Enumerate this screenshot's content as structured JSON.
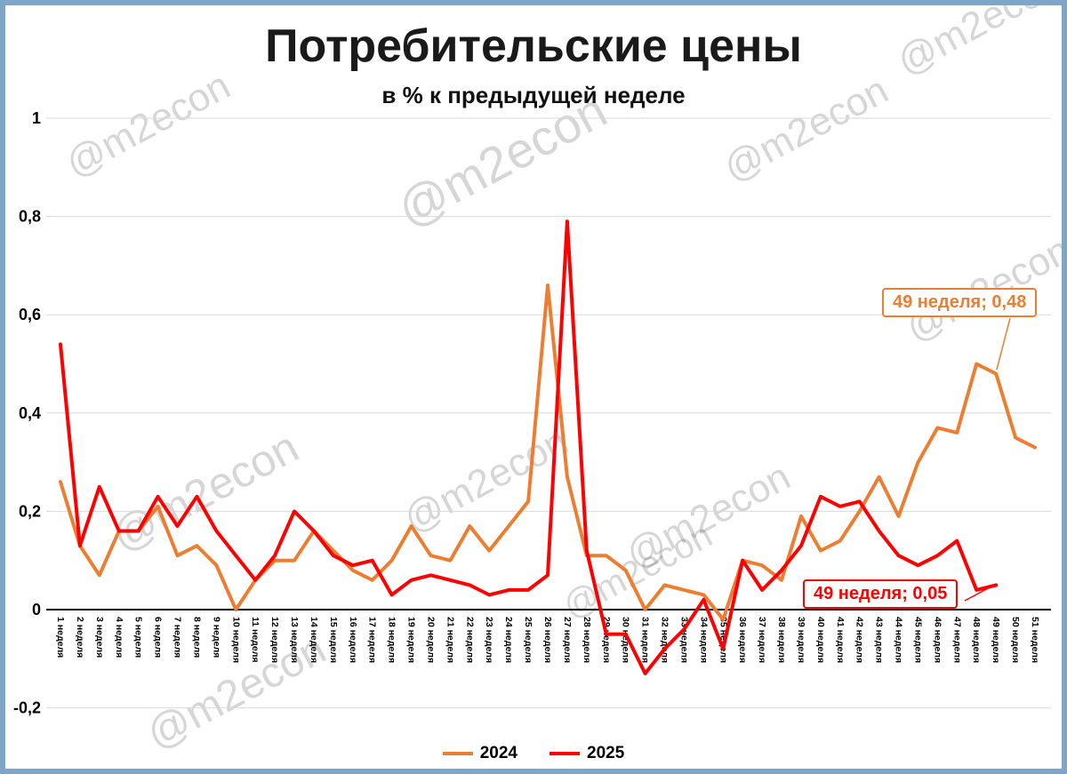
{
  "title": "Потребительские цены",
  "subtitle": "в % к предыдущей неделе",
  "watermark_text": "@m2econ",
  "annotations": [
    {
      "text": "49 неделя; 0,48",
      "color": "#ED7D31",
      "series": "2024"
    },
    {
      "text": "49 неделя; 0,05",
      "color": "#FF0000",
      "series": "2025"
    }
  ],
  "chart_data": {
    "type": "line",
    "title": "Потребительские цены",
    "subtitle": "в % к предыдущей неделе",
    "xlabel": "",
    "ylabel": "",
    "ylim": [
      -0.2,
      1
    ],
    "yticks": [
      -0.2,
      0,
      0.2,
      0.4,
      0.6,
      0.8,
      1
    ],
    "ytick_labels": [
      "-0,2",
      "0",
      "0,2",
      "0,4",
      "0,6",
      "0,8",
      "1"
    ],
    "grid": true,
    "legend_position": "bottom",
    "x_labels": [
      "1 неделя",
      "2 неделя",
      "3 неделя",
      "4 неделя",
      "5 неделя",
      "6 неделя",
      "7 неделя",
      "8 неделя",
      "9 неделя",
      "10 неделя",
      "11 неделя",
      "12 неделя",
      "13 неделя",
      "14 неделя",
      "15 неделя",
      "16 неделя",
      "17 неделя",
      "18 неделя",
      "19 неделя",
      "20 неделя",
      "21 неделя",
      "22 неделя",
      "23 неделя",
      "24 неделя",
      "25 неделя",
      "26 неделя",
      "27 неделя",
      "28 неделя",
      "29 неделя",
      "30 неделя",
      "31 неделя",
      "32 неделя",
      "33 неделя",
      "34 неделя",
      "35 неделя",
      "36 неделя",
      "37 неделя",
      "38 неделя",
      "39 неделя",
      "40 неделя",
      "41 неделя",
      "42 неделя",
      "43 неделя",
      "44 неделя",
      "45 неделя",
      "46 неделя",
      "47 неделя",
      "48 неделя",
      "49 неделя",
      "50 неделя",
      "51 неделя"
    ],
    "series": [
      {
        "name": "2024",
        "color": "#ED7D31",
        "values": [
          0.26,
          0.13,
          0.07,
          0.16,
          0.16,
          0.21,
          0.11,
          0.13,
          0.09,
          0.0,
          0.06,
          0.1,
          0.1,
          0.16,
          0.12,
          0.08,
          0.06,
          0.1,
          0.17,
          0.11,
          0.1,
          0.17,
          0.12,
          0.17,
          0.22,
          0.66,
          0.27,
          0.11,
          0.11,
          0.08,
          0.0,
          0.05,
          0.04,
          0.03,
          -0.02,
          0.1,
          0.09,
          0.06,
          0.19,
          0.12,
          0.14,
          0.2,
          0.27,
          0.19,
          0.3,
          0.37,
          0.36,
          0.5,
          0.48,
          0.35,
          0.33
        ]
      },
      {
        "name": "2025",
        "color": "#FF0000",
        "values": [
          0.54,
          0.13,
          0.25,
          0.16,
          0.16,
          0.23,
          0.17,
          0.23,
          0.16,
          0.11,
          0.06,
          0.11,
          0.2,
          0.16,
          0.11,
          0.09,
          0.1,
          0.03,
          0.06,
          0.07,
          0.06,
          0.05,
          0.03,
          0.04,
          0.04,
          0.07,
          0.79,
          0.12,
          -0.05,
          -0.05,
          -0.13,
          -0.08,
          -0.04,
          0.02,
          -0.08,
          0.1,
          0.04,
          0.08,
          0.13,
          0.23,
          0.21,
          0.22,
          0.16,
          0.11,
          0.09,
          0.11,
          0.14,
          0.04,
          0.05
        ]
      }
    ]
  }
}
